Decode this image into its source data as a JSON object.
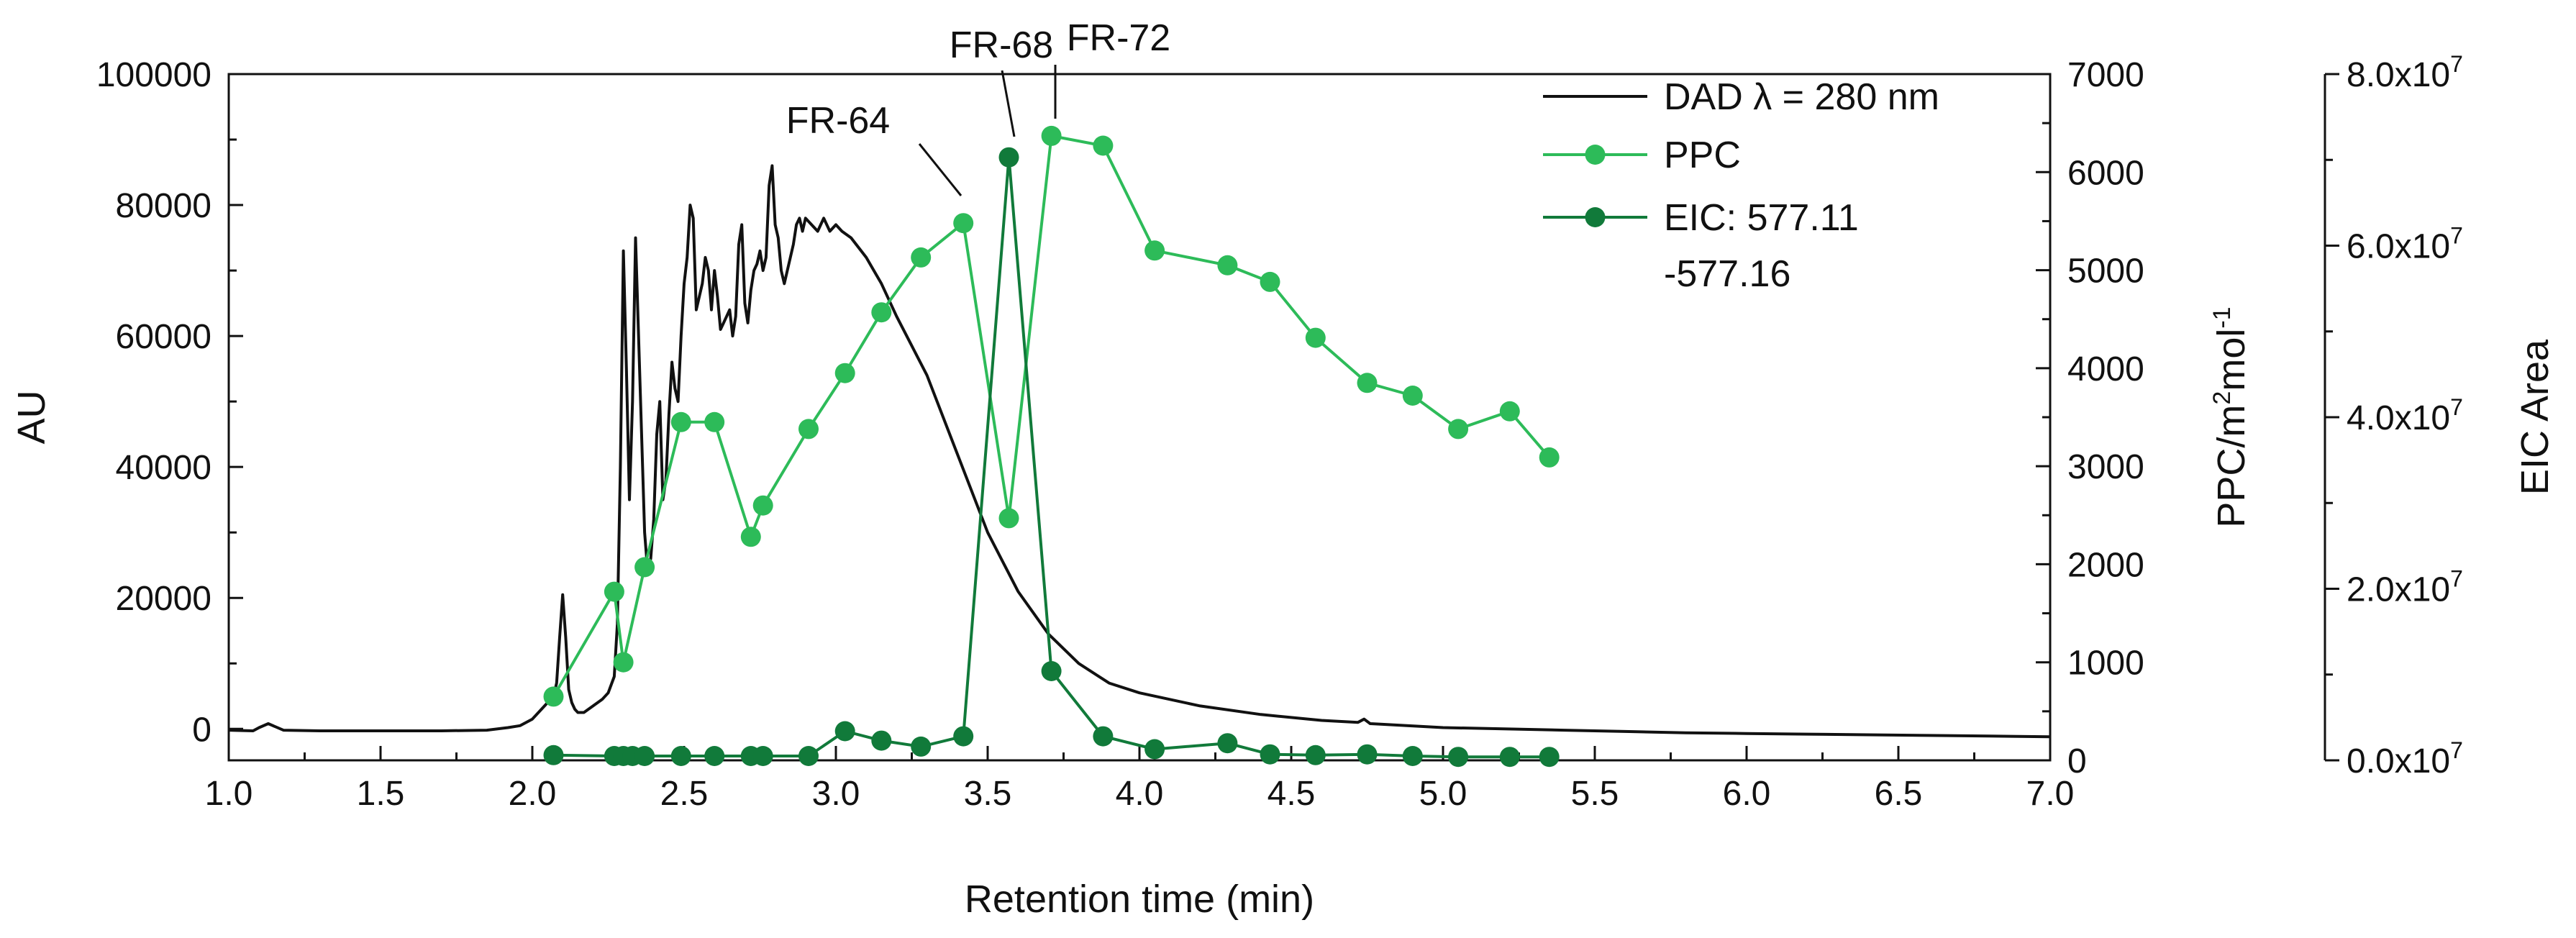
{
  "chart_data": {
    "type": "line",
    "title": "",
    "xlabel": "Retention time (min)",
    "xlim": [
      1.0,
      7.0
    ],
    "xticks": [
      "1.0",
      "1.5",
      "2.0",
      "2.5",
      "3.0",
      "3.5",
      "4.0",
      "4.5",
      "5.0",
      "5.5",
      "6.0",
      "6.5",
      "7.0"
    ],
    "axes": {
      "left": {
        "label": "AU",
        "lim": [
          -4800,
          100000
        ],
        "ticks": [
          0,
          20000,
          40000,
          60000,
          80000,
          100000
        ],
        "tick_labels": [
          "0",
          "20000",
          "40000",
          "60000",
          "80000",
          "100000"
        ]
      },
      "right": {
        "label_main": "PPC/m",
        "label_sup1": "2",
        "label_mid": "mol",
        "label_sup2": "-1",
        "lim": [
          0,
          7000
        ],
        "ticks": [
          0,
          1000,
          2000,
          3000,
          4000,
          5000,
          6000,
          7000
        ],
        "tick_labels": [
          "0",
          "1000",
          "2000",
          "3000",
          "4000",
          "5000",
          "6000",
          "7000"
        ]
      },
      "right2": {
        "label": "EIC Area",
        "lim": [
          0,
          80000000
        ],
        "ticks": [
          0,
          20000000,
          40000000,
          60000000,
          80000000
        ],
        "tick_mantissas": [
          "0.0x10",
          "2.0x10",
          "4.0x10",
          "6.0x10",
          "8.0x10"
        ],
        "tick_exponents": [
          "7",
          "7",
          "7",
          "7",
          "7"
        ]
      }
    },
    "legend": {
      "position": "top-right",
      "entries": [
        "DAD λ = 280 nm",
        "PPC",
        "EIC: 577.11",
        "-577.16"
      ]
    },
    "series": [
      {
        "name": "DAD λ = 280 nm",
        "axis": "left",
        "color": "#111111",
        "marker": "none",
        "x": [
          1.0,
          1.08,
          1.1,
          1.13,
          1.18,
          1.3,
          1.5,
          1.7,
          1.85,
          1.92,
          1.96,
          2.0,
          2.03,
          2.05,
          2.07,
          2.08,
          2.09,
          2.1,
          2.11,
          2.12,
          2.13,
          2.14,
          2.15,
          2.17,
          2.2,
          2.23,
          2.25,
          2.27,
          2.28,
          2.29,
          2.3,
          2.31,
          2.32,
          2.33,
          2.34,
          2.35,
          2.36,
          2.37,
          2.38,
          2.39,
          2.4,
          2.41,
          2.42,
          2.43,
          2.44,
          2.45,
          2.46,
          2.47,
          2.48,
          2.49,
          2.5,
          2.51,
          2.52,
          2.53,
          2.54,
          2.55,
          2.56,
          2.57,
          2.58,
          2.59,
          2.6,
          2.61,
          2.62,
          2.63,
          2.64,
          2.65,
          2.66,
          2.67,
          2.68,
          2.69,
          2.7,
          2.71,
          2.72,
          2.73,
          2.74,
          2.75,
          2.76,
          2.77,
          2.78,
          2.79,
          2.8,
          2.81,
          2.82,
          2.83,
          2.84,
          2.85,
          2.86,
          2.87,
          2.88,
          2.89,
          2.9,
          2.92,
          2.94,
          2.96,
          2.98,
          3.0,
          3.02,
          3.05,
          3.1,
          3.15,
          3.2,
          3.3,
          3.4,
          3.5,
          3.6,
          3.7,
          3.8,
          3.9,
          4.0,
          4.2,
          4.4,
          4.6,
          4.72,
          4.74,
          4.76,
          4.8,
          5.0,
          5.2,
          5.4,
          5.6,
          5.8,
          6.0,
          6.2,
          6.4,
          6.6,
          6.8,
          7.0
        ],
        "values": [
          -200,
          -300,
          200,
          800,
          -200,
          -300,
          -300,
          -300,
          -200,
          200,
          500,
          1500,
          3000,
          4000,
          5000,
          7000,
          14000,
          20500,
          14000,
          6000,
          4000,
          3000,
          2500,
          2500,
          3500,
          4500,
          5500,
          8000,
          16000,
          40000,
          73000,
          55000,
          35000,
          50000,
          75000,
          60000,
          45000,
          30000,
          24000,
          26000,
          32000,
          45000,
          50000,
          35000,
          38000,
          48000,
          56000,
          52000,
          50000,
          60000,
          68000,
          72000,
          80000,
          78000,
          64000,
          66000,
          68000,
          72000,
          70000,
          64000,
          70000,
          66000,
          61000,
          62000,
          63000,
          64000,
          60000,
          63000,
          74000,
          77000,
          65000,
          62000,
          67000,
          70000,
          71000,
          73000,
          70000,
          72000,
          83000,
          86000,
          77000,
          75000,
          70000,
          68000,
          70000,
          72000,
          74000,
          77000,
          78000,
          76000,
          78000,
          77000,
          76000,
          78000,
          76000,
          77000,
          76000,
          75000,
          72000,
          68000,
          63000,
          54000,
          42000,
          30000,
          21000,
          14500,
          10000,
          7000,
          5500,
          3500,
          2200,
          1300,
          1000,
          1500,
          800,
          700,
          200,
          0,
          -200,
          -400,
          -600,
          -700,
          -800,
          -900,
          -1000,
          -1100,
          -1200
        ]
      },
      {
        "name": "PPC",
        "axis": "right",
        "color": "#2dbb59",
        "marker": "circle",
        "x": [
          2.07,
          2.27,
          2.3,
          2.37,
          2.49,
          2.6,
          2.72,
          2.76,
          2.91,
          3.03,
          3.15,
          3.28,
          3.42,
          3.57,
          3.71,
          3.88,
          4.05,
          4.29,
          4.43,
          4.58,
          4.75,
          4.9,
          5.05,
          5.22,
          5.35
        ],
        "values": [
          650,
          1720,
          1000,
          1970,
          3450,
          3450,
          2280,
          2600,
          3380,
          3950,
          4570,
          5130,
          5480,
          2470,
          6370,
          6270,
          5200,
          5050,
          4880,
          4310,
          3850,
          3720,
          3380,
          3560,
          3090
        ]
      },
      {
        "name": "EIC: 577.11 -577.16",
        "axis": "right2",
        "color": "#117a3a",
        "marker": "circle",
        "x": [
          2.07,
          2.27,
          2.3,
          2.33,
          2.37,
          2.49,
          2.6,
          2.72,
          2.76,
          2.91,
          3.03,
          3.15,
          3.28,
          3.42,
          3.57,
          3.71,
          3.88,
          4.05,
          4.29,
          4.43,
          4.58,
          4.75,
          4.9,
          5.05,
          5.22,
          5.35
        ],
        "values": [
          600000,
          500000,
          500000,
          500000,
          500000,
          500000,
          500000,
          500000,
          500000,
          500000,
          3400000,
          2300000,
          1600000,
          2800000,
          70300000,
          10400000,
          2800000,
          1300000,
          2000000,
          700000,
          600000,
          700000,
          500000,
          400000,
          400000,
          400000
        ]
      }
    ],
    "annotations": [
      {
        "text": "FR-64",
        "x": 3.42
      },
      {
        "text": "FR-68",
        "x": 3.57
      },
      {
        "text": "FR-72",
        "x": 3.71
      }
    ]
  }
}
